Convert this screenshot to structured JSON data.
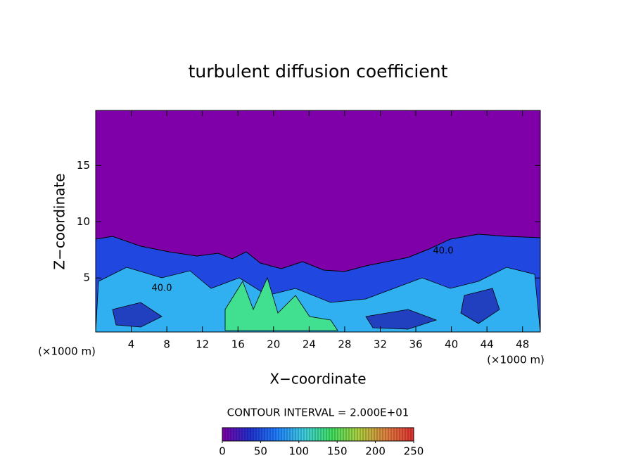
{
  "chart_data": {
    "type": "contour",
    "title": "turbulent diffusion coefficient",
    "x_label": "X−coordinate",
    "y_label": "Z−coordinate",
    "x_unit": "(×1000 m)",
    "y_unit": "(×1000 m)",
    "xlim": [
      0,
      50
    ],
    "xticks": [
      4,
      8,
      12,
      16,
      20,
      24,
      28,
      32,
      36,
      40,
      44,
      48
    ],
    "ylim": [
      0.2,
      19.9
    ],
    "yticks": [
      5,
      10,
      15
    ],
    "annotations": [
      "40.0",
      "40.0"
    ],
    "colorbar": {
      "title": "CONTOUR INTERVAL = 2.000E+01",
      "range": [
        0,
        250
      ],
      "ticks": [
        0,
        50,
        100,
        150,
        200,
        250
      ],
      "colors": [
        "#7f00a8",
        "#2030d0",
        "#2080ff",
        "#40d0e0",
        "#40e060",
        "#b0d040",
        "#e08040",
        "#e03030"
      ]
    }
  }
}
